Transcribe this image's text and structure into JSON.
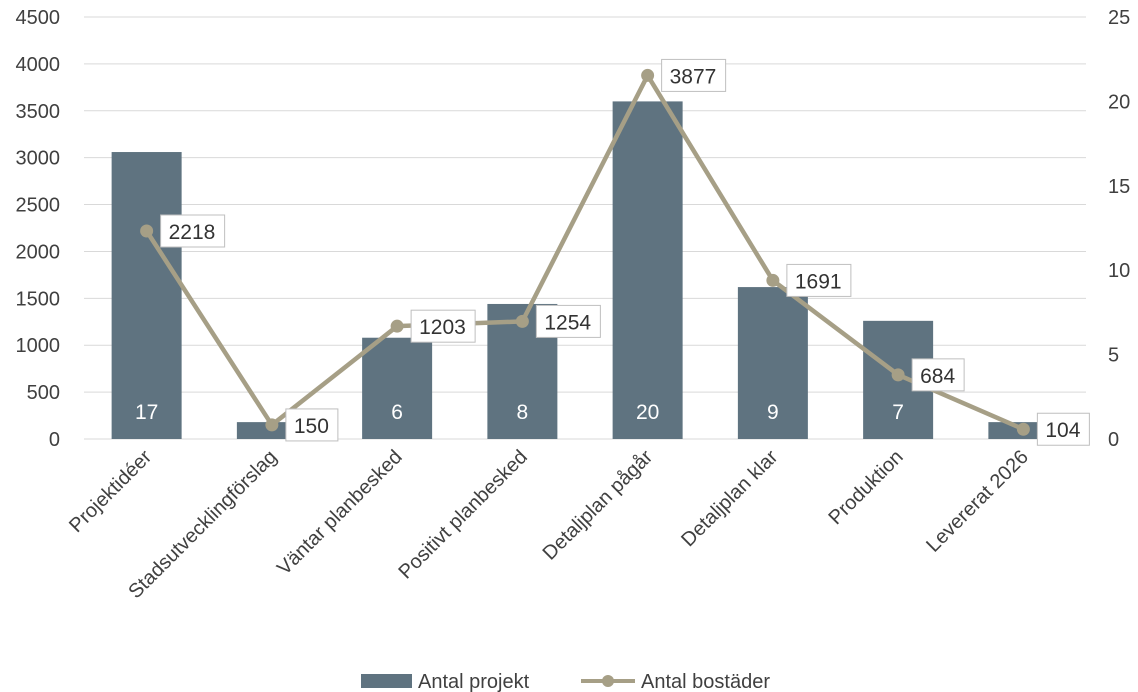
{
  "chart_data": {
    "type": "bar",
    "categories": [
      "Projektidéer",
      "Stadsutvecklingförslag",
      "Väntar planbesked",
      "Positivt planbesked",
      "Detaljplan pågår",
      "Detaljplan klar",
      "Produktion",
      "Levererat 2026"
    ],
    "series": [
      {
        "name": "Antal projekt",
        "type": "bar",
        "axis": "secondary",
        "values": [
          17,
          1,
          6,
          8,
          20,
          9,
          7,
          1
        ],
        "labels": [
          "17",
          "",
          "6",
          "8",
          "20",
          "9",
          "7",
          ""
        ],
        "color": "#5f7380"
      },
      {
        "name": "Antal bostäder",
        "type": "line",
        "axis": "primary",
        "values": [
          2218,
          150,
          1203,
          1254,
          3877,
          1691,
          684,
          104
        ],
        "labels": [
          "2218",
          "150",
          "1203",
          "1254",
          "3877",
          "1691",
          "684",
          "104"
        ],
        "color": "#a69f86"
      }
    ],
    "y_primary": {
      "ylim": [
        0,
        4500
      ],
      "ticks": [
        "0",
        "500",
        "1000",
        "1500",
        "2000",
        "2500",
        "3000",
        "3500",
        "4000",
        "4500"
      ]
    },
    "y_secondary": {
      "ylim": [
        0,
        25
      ],
      "ticks": [
        "0",
        "5",
        "10",
        "15",
        "20",
        "25"
      ]
    },
    "grid": true,
    "legend": "bottom"
  }
}
